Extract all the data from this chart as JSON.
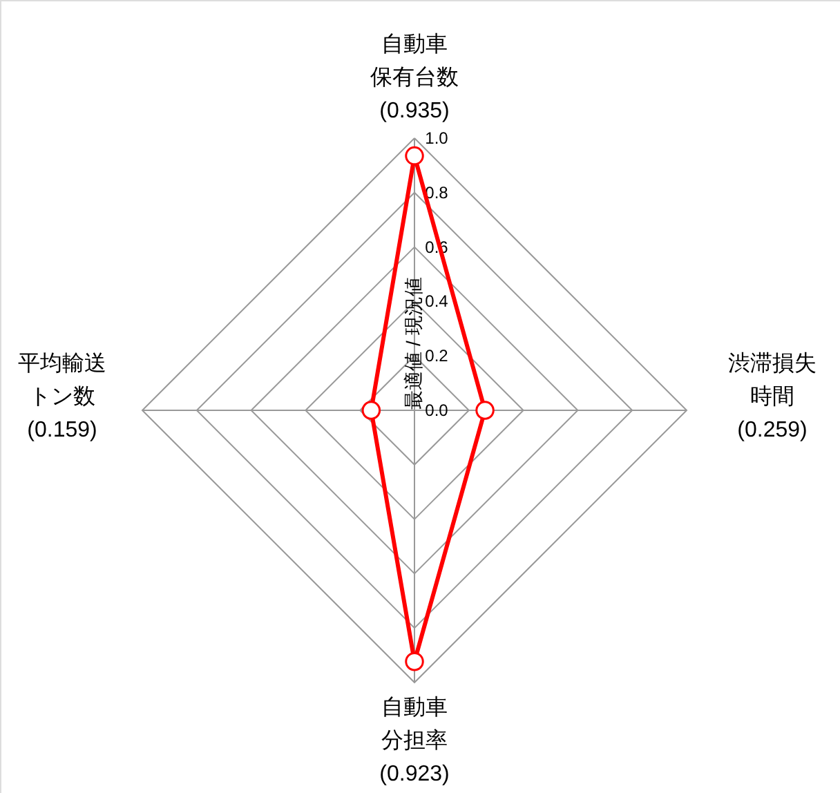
{
  "chart_data": {
    "type": "radar",
    "categories": [
      "自動車保有台数(0.935)",
      "渋滞損失時間(0.259)",
      "自動車分担率(0.923)",
      "平均輸送トン数(0.159)"
    ],
    "series": [
      {
        "color": "#ff0000",
        "values": [
          0.935,
          0.259,
          0.923,
          0.159
        ]
      }
    ],
    "ylabel": "最適値 / 現況値",
    "ylim": [
      0,
      1
    ],
    "yticks": [
      {
        "value": 0,
        "label": "0.0"
      },
      {
        "value": 0.2,
        "label": "0.2"
      },
      {
        "value": 0.4,
        "label": "0.4"
      },
      {
        "value": 0.6,
        "label": "0.6"
      },
      {
        "value": 0.8,
        "label": "0.8"
      },
      {
        "value": 1,
        "label": "1.0"
      }
    ],
    "grid": true,
    "marker": "circle",
    "line_style": "solid"
  }
}
